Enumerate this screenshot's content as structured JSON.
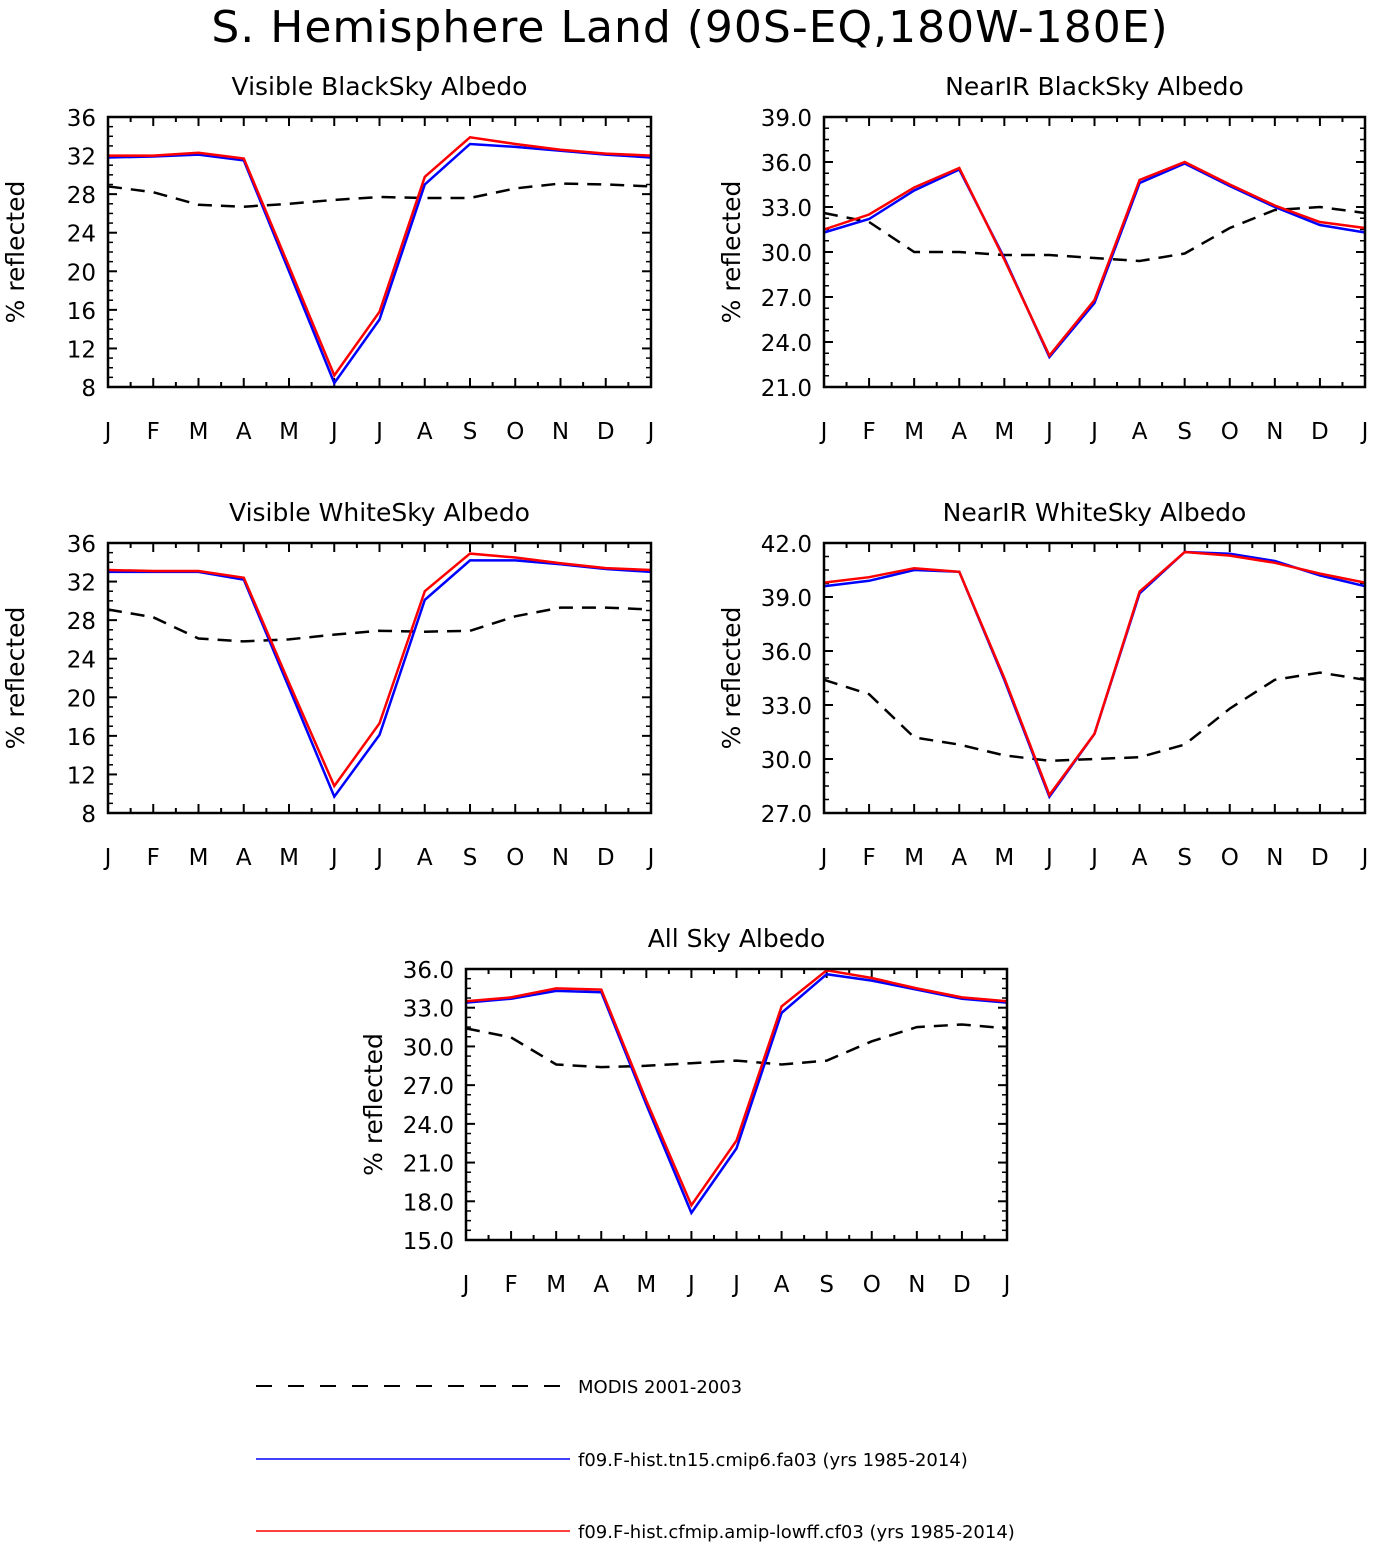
{
  "title": "S. Hemisphere Land (90S-EQ,180W-180E)",
  "colors": {
    "obs": "#000000",
    "model1": "#0000ff",
    "model2": "#ff0000"
  },
  "legend": [
    {
      "label": "MODIS 2001-2003",
      "color": "#000000",
      "style": "dashed"
    },
    {
      "label": "f09.F-hist.tn15.cmip6.fa03 (yrs 1985-2014)",
      "color": "#0000ff",
      "style": "solid"
    },
    {
      "label": "f09.F-hist.cfmip.amip-lowff.cf03 (yrs 1985-2014)",
      "color": "#ff0000",
      "style": "solid"
    }
  ],
  "chart_data": [
    {
      "type": "line",
      "title": "Visible BlackSky Albedo",
      "ylabel": "% reflected",
      "categories": [
        "J",
        "F",
        "M",
        "A",
        "M",
        "J",
        "J",
        "A",
        "S",
        "O",
        "N",
        "D",
        "J"
      ],
      "ylim": [
        8,
        36
      ],
      "yticks": [
        "8",
        "12",
        "16",
        "20",
        "24",
        "28",
        "32",
        "36"
      ],
      "series": [
        {
          "name": "MODIS 2001-2003",
          "style": "dashed",
          "color": "#000000",
          "values": [
            28.8,
            28.2,
            26.9,
            26.7,
            27.0,
            27.4,
            27.7,
            27.6,
            27.6,
            28.6,
            29.1,
            29.0,
            28.8
          ]
        },
        {
          "name": "f09.F-hist.tn15.cmip6.fa03 (yrs 1985-2014)",
          "style": "solid",
          "color": "#0000ff",
          "values": [
            31.8,
            31.9,
            32.1,
            31.5,
            20.0,
            8.4,
            15.0,
            29.0,
            33.2,
            32.9,
            32.5,
            32.1,
            31.8
          ]
        },
        {
          "name": "f09.F-hist.cfmip.amip-lowff.cf03 (yrs 1985-2014)",
          "style": "solid",
          "color": "#ff0000",
          "values": [
            32.0,
            32.0,
            32.3,
            31.7,
            20.5,
            9.2,
            15.8,
            29.8,
            33.9,
            33.2,
            32.6,
            32.2,
            32.0
          ]
        }
      ]
    },
    {
      "type": "line",
      "title": "NearIR BlackSky Albedo",
      "ylabel": "% reflected",
      "categories": [
        "J",
        "F",
        "M",
        "A",
        "M",
        "J",
        "J",
        "A",
        "S",
        "O",
        "N",
        "D",
        "J"
      ],
      "ylim": [
        21,
        39
      ],
      "yticks": [
        "21.0",
        "24.0",
        "27.0",
        "30.0",
        "33.0",
        "36.0",
        "39.0"
      ],
      "series": [
        {
          "name": "MODIS 2001-2003",
          "style": "dashed",
          "color": "#000000",
          "values": [
            32.6,
            32.0,
            30.0,
            30.0,
            29.8,
            29.8,
            29.6,
            29.4,
            29.9,
            31.6,
            32.8,
            33.0,
            32.6
          ]
        },
        {
          "name": "f09.F-hist.tn15.cmip6.fa03 (yrs 1985-2014)",
          "style": "solid",
          "color": "#0000ff",
          "values": [
            31.3,
            32.2,
            34.1,
            35.5,
            29.6,
            23.0,
            26.6,
            34.6,
            35.9,
            34.4,
            33.0,
            31.8,
            31.3
          ]
        },
        {
          "name": "f09.F-hist.cfmip.amip-lowff.cf03 (yrs 1985-2014)",
          "style": "solid",
          "color": "#ff0000",
          "values": [
            31.5,
            32.5,
            34.3,
            35.6,
            29.5,
            23.1,
            26.8,
            34.8,
            36.0,
            34.5,
            33.1,
            32.0,
            31.6
          ]
        }
      ]
    },
    {
      "type": "line",
      "title": "Visible WhiteSky Albedo",
      "ylabel": "% reflected",
      "categories": [
        "J",
        "F",
        "M",
        "A",
        "M",
        "J",
        "J",
        "A",
        "S",
        "O",
        "N",
        "D",
        "J"
      ],
      "ylim": [
        8,
        36
      ],
      "yticks": [
        "8",
        "12",
        "16",
        "20",
        "24",
        "28",
        "32",
        "36"
      ],
      "series": [
        {
          "name": "MODIS 2001-2003",
          "style": "dashed",
          "color": "#000000",
          "values": [
            29.1,
            28.3,
            26.1,
            25.8,
            26.0,
            26.5,
            26.9,
            26.8,
            26.9,
            28.4,
            29.3,
            29.3,
            29.1
          ]
        },
        {
          "name": "f09.F-hist.tn15.cmip6.fa03 (yrs 1985-2014)",
          "style": "solid",
          "color": "#0000ff",
          "values": [
            33.0,
            33.0,
            33.0,
            32.2,
            21.0,
            9.7,
            16.1,
            30.1,
            34.2,
            34.2,
            33.8,
            33.3,
            33.0
          ]
        },
        {
          "name": "f09.F-hist.cfmip.amip-lowff.cf03 (yrs 1985-2014)",
          "style": "solid",
          "color": "#ff0000",
          "values": [
            33.2,
            33.1,
            33.1,
            32.4,
            21.5,
            10.8,
            17.3,
            31.0,
            34.9,
            34.5,
            33.9,
            33.4,
            33.2
          ]
        }
      ]
    },
    {
      "type": "line",
      "title": "NearIR WhiteSky Albedo",
      "ylabel": "% reflected",
      "categories": [
        "J",
        "F",
        "M",
        "A",
        "M",
        "J",
        "J",
        "A",
        "S",
        "O",
        "N",
        "D",
        "J"
      ],
      "ylim": [
        27,
        42
      ],
      "yticks": [
        "27.0",
        "30.0",
        "33.0",
        "36.0",
        "39.0",
        "42.0"
      ],
      "series": [
        {
          "name": "MODIS 2001-2003",
          "style": "dashed",
          "color": "#000000",
          "values": [
            34.4,
            33.6,
            31.2,
            30.8,
            30.2,
            29.9,
            30.0,
            30.1,
            30.8,
            32.8,
            34.4,
            34.8,
            34.4
          ]
        },
        {
          "name": "f09.F-hist.tn15.cmip6.fa03 (yrs 1985-2014)",
          "style": "solid",
          "color": "#0000ff",
          "values": [
            39.6,
            39.9,
            40.5,
            40.4,
            34.4,
            27.9,
            31.4,
            39.2,
            41.5,
            41.4,
            41.0,
            40.2,
            39.6
          ]
        },
        {
          "name": "f09.F-hist.cfmip.amip-lowff.cf03 (yrs 1985-2014)",
          "style": "solid",
          "color": "#ff0000",
          "values": [
            39.8,
            40.1,
            40.6,
            40.4,
            34.5,
            28.0,
            31.4,
            39.3,
            41.5,
            41.3,
            40.9,
            40.3,
            39.8
          ]
        }
      ]
    },
    {
      "type": "line",
      "title": "All Sky Albedo",
      "ylabel": "% reflected",
      "categories": [
        "J",
        "F",
        "M",
        "A",
        "M",
        "J",
        "J",
        "A",
        "S",
        "O",
        "N",
        "D",
        "J"
      ],
      "ylim": [
        15,
        36
      ],
      "yticks": [
        "15.0",
        "18.0",
        "21.0",
        "24.0",
        "27.0",
        "30.0",
        "33.0",
        "36.0"
      ],
      "series": [
        {
          "name": "MODIS 2001-2003",
          "style": "dashed",
          "color": "#000000",
          "values": [
            31.4,
            30.7,
            28.6,
            28.4,
            28.5,
            28.7,
            28.9,
            28.6,
            28.9,
            30.4,
            31.5,
            31.7,
            31.4
          ]
        },
        {
          "name": "f09.F-hist.tn15.cmip6.fa03 (yrs 1985-2014)",
          "style": "solid",
          "color": "#0000ff",
          "values": [
            33.4,
            33.7,
            34.3,
            34.2,
            25.5,
            17.1,
            22.1,
            32.6,
            35.6,
            35.1,
            34.4,
            33.7,
            33.4
          ]
        },
        {
          "name": "f09.F-hist.cfmip.amip-lowff.cf03 (yrs 1985-2014)",
          "style": "solid",
          "color": "#ff0000",
          "values": [
            33.5,
            33.8,
            34.5,
            34.4,
            25.8,
            17.7,
            22.7,
            33.1,
            35.9,
            35.3,
            34.5,
            33.8,
            33.5
          ]
        }
      ]
    }
  ]
}
